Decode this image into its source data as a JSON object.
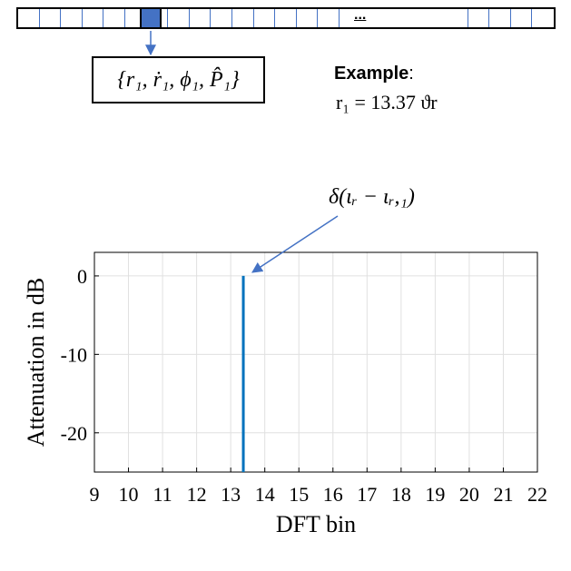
{
  "top": {
    "dots": "...",
    "tuple_label": "{r₁, ṙ₁, ϕ₁, P̂₁}",
    "example_heading": "Example",
    "example_colon": ":",
    "example_value": "r₁ = 13.37 ϑr"
  },
  "annotation": {
    "delta_label": "δ(ιᵣ − ιᵣ,₁)"
  },
  "colors": {
    "strip_cell": "#4472c4",
    "selected_cell": "#4472c4",
    "arrow": "#4472c4",
    "stem": "#0072bd",
    "grid": "#e0e0e0"
  },
  "chart_data": {
    "type": "stem",
    "x": [
      13.37
    ],
    "y": [
      0
    ],
    "baseline": -25,
    "xlabel": "DFT bin",
    "ylabel": "Attenuation in dB",
    "xlim": [
      9,
      22
    ],
    "ylim": [
      -25,
      3
    ],
    "xticks": [
      "9",
      "10",
      "11",
      "12",
      "13",
      "14",
      "15",
      "16",
      "17",
      "18",
      "19",
      "20",
      "21",
      "22"
    ],
    "yticks": [
      "0",
      "-10",
      "-20"
    ],
    "grid": true
  }
}
